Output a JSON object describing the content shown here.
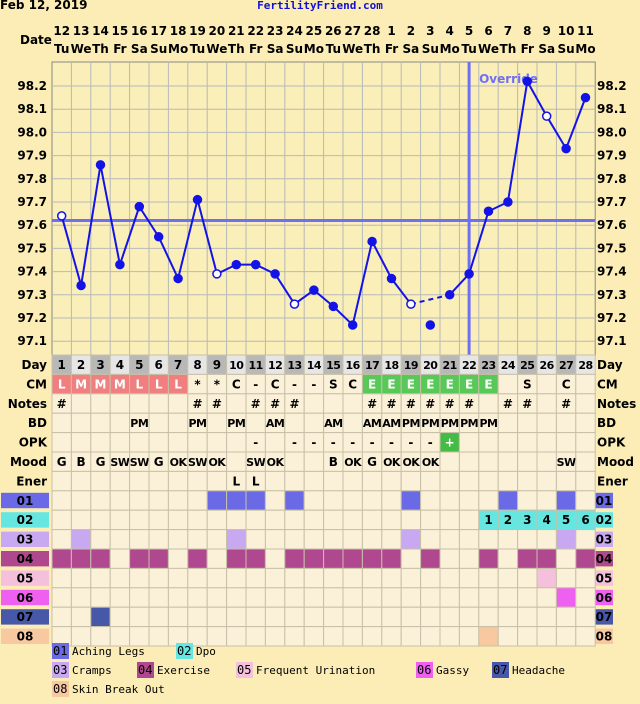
{
  "header": {
    "date": "Feb 12, 2019",
    "site": "FertilityFriend.com"
  },
  "labels": {
    "date_row": "Date",
    "override": "Override"
  },
  "colors": {
    "background": "#fcedb7",
    "plot_bg": "#faefb8",
    "temp_line": "#1313e8",
    "coverline": "#6f6ff2",
    "dpo_cell": "#66e6e0",
    "opk_positive": "#44bb44",
    "cm_fertile": "#58c858",
    "cm_menses": "#f08080",
    "day_cell_a": "#b8b8b8",
    "day_cell_b": "#e6e6e6"
  },
  "chart_data": {
    "type": "line",
    "dates": [
      "12",
      "13",
      "14",
      "15",
      "16",
      "17",
      "18",
      "19",
      "20",
      "21",
      "22",
      "23",
      "24",
      "25",
      "26",
      "27",
      "28",
      "1",
      "2",
      "3",
      "4",
      "5",
      "6",
      "7",
      "8",
      "9",
      "10",
      "11"
    ],
    "weekdays": [
      "Tu",
      "We",
      "Th",
      "Fr",
      "Sa",
      "Su",
      "Mo",
      "Tu",
      "We",
      "Th",
      "Fr",
      "Sa",
      "Su",
      "Mo",
      "Tu",
      "We",
      "Th",
      "Fr",
      "Sa",
      "Su",
      "Mo",
      "Tu",
      "We",
      "Th",
      "Fr",
      "Sa",
      "Su",
      "Mo"
    ],
    "cycle_days": [
      1,
      2,
      3,
      4,
      5,
      6,
      7,
      8,
      9,
      10,
      11,
      12,
      13,
      14,
      15,
      16,
      17,
      18,
      19,
      20,
      21,
      22,
      23,
      24,
      25,
      26,
      27,
      28
    ],
    "temps": [
      97.64,
      97.34,
      97.86,
      97.43,
      97.68,
      97.55,
      97.37,
      97.71,
      97.39,
      97.43,
      97.43,
      97.39,
      97.26,
      97.32,
      97.25,
      97.17,
      97.53,
      97.37,
      97.26,
      97.17,
      97.3,
      97.39,
      97.66,
      97.7,
      98.22,
      98.07,
      97.93,
      98.15
    ],
    "open_markers": [
      1,
      9,
      13,
      19,
      26
    ],
    "dashed_segments": [
      [
        19,
        21
      ]
    ],
    "detached_points": [
      20
    ],
    "coverline": 97.62,
    "override_day": 22,
    "y_ticks": [
      "98.2",
      "98.1",
      "98.0",
      "97.9",
      "97.8",
      "97.7",
      "97.6",
      "97.5",
      "97.4",
      "97.3",
      "97.2",
      "97.1"
    ],
    "ylim": [
      97.0,
      98.25
    ]
  },
  "rows": [
    {
      "label": "Day",
      "kind": "day"
    },
    {
      "label": "CM",
      "cells": [
        "L",
        "M",
        "M",
        "M",
        "L",
        "L",
        "L",
        "*",
        "*",
        "C",
        "-",
        "C",
        "-",
        "-",
        "S",
        "C",
        "E",
        "E",
        "E",
        "E",
        "E",
        "E",
        "E",
        "",
        "S",
        "",
        "C",
        ""
      ],
      "fills": [
        "cm_menses",
        "cm_menses",
        "cm_menses",
        "cm_menses",
        "cm_menses",
        "cm_menses",
        "cm_menses",
        "",
        "",
        "",
        "",
        "",
        "",
        "",
        "",
        "",
        "cm_fertile",
        "cm_fertile",
        "cm_fertile",
        "cm_fertile",
        "cm_fertile",
        "cm_fertile",
        "cm_fertile",
        "",
        "",
        "",
        "",
        ""
      ]
    },
    {
      "label": "Notes",
      "cells": [
        "#",
        "",
        "",
        "",
        "",
        "",
        "",
        "#",
        "#",
        "",
        "#",
        "#",
        "#",
        "",
        "",
        "",
        "#",
        "#",
        "#",
        "#",
        "#",
        "#",
        "",
        "#",
        "#",
        "",
        "#",
        ""
      ]
    },
    {
      "label": "BD",
      "cells": [
        "",
        "",
        "",
        "",
        "PM",
        "",
        "",
        "PM",
        "",
        "PM",
        "",
        "AM",
        "",
        "",
        "AM",
        "",
        "AM",
        "AM",
        "PM",
        "PM",
        "PM",
        "PM",
        "PM",
        "",
        "",
        "",
        "",
        ""
      ]
    },
    {
      "label": "OPK",
      "cells": [
        "",
        "",
        "",
        "",
        "",
        "",
        "",
        "",
        "",
        "",
        "-",
        "",
        "-",
        "-",
        "-",
        "-",
        "-",
        "-",
        "-",
        "-",
        "+",
        "",
        "",
        "",
        "",
        "",
        "",
        ""
      ],
      "fills": [
        "",
        "",
        "",
        "",
        "",
        "",
        "",
        "",
        "",
        "",
        "",
        "",
        "",
        "",
        "",
        "",
        "",
        "",
        "",
        "",
        "opk_positive",
        "",
        "",
        "",
        "",
        "",
        "",
        ""
      ]
    },
    {
      "label": "Mood",
      "cells": [
        "G",
        "B",
        "G",
        "SW",
        "SW",
        "G",
        "OK",
        "SW",
        "OK",
        "",
        "SW",
        "OK",
        "",
        "",
        "B",
        "OK",
        "G",
        "OK",
        "OK",
        "OK",
        "",
        "",
        "",
        "",
        "",
        "",
        "SW",
        ""
      ]
    },
    {
      "label": "Ener",
      "cells": [
        "",
        "",
        "",
        "",
        "",
        "",
        "",
        "",
        "",
        "L",
        "L",
        "",
        "",
        "",
        "",
        "",
        "",
        "",
        "",
        "",
        "",
        "",
        "",
        "",
        "",
        "",
        "",
        ""
      ]
    },
    {
      "label": "01",
      "cells": [
        "",
        "",
        "",
        "",
        "",
        "",
        "",
        "",
        "",
        "",
        "",
        "",
        "",
        "",
        "",
        "",
        "",
        "",
        "",
        "",
        "",
        "",
        "",
        "",
        "",
        "",
        "",
        ""
      ],
      "fills": [
        "",
        "",
        "",
        "",
        "",
        "",
        "",
        "",
        "c01",
        "c01",
        "c01",
        "",
        "c01",
        "",
        "",
        "",
        "",
        "",
        "c01",
        "",
        "",
        "",
        "",
        "c01",
        "",
        "",
        "c01",
        ""
      ]
    },
    {
      "label": "02",
      "cells": [
        "",
        "",
        "",
        "",
        "",
        "",
        "",
        "",
        "",
        "",
        "",
        "",
        "",
        "",
        "",
        "",
        "",
        "",
        "",
        "",
        "",
        "",
        "1",
        "2",
        "3",
        "4",
        "5",
        "6"
      ],
      "fills": [
        "",
        "",
        "",
        "",
        "",
        "",
        "",
        "",
        "",
        "",
        "",
        "",
        "",
        "",
        "",
        "",
        "",
        "",
        "",
        "",
        "",
        "",
        "c02",
        "c02",
        "c02",
        "c02",
        "c02",
        "c02"
      ]
    },
    {
      "label": "03",
      "cells": [
        "",
        "",
        "",
        "",
        "",
        "",
        "",
        "",
        "",
        "",
        "",
        "",
        "",
        "",
        "",
        "",
        "",
        "",
        "",
        "",
        "",
        "",
        "",
        "",
        "",
        "",
        "",
        ""
      ],
      "fills": [
        "",
        "c03",
        "",
        "",
        "",
        "",
        "",
        "",
        "",
        "c03",
        "",
        "",
        "",
        "",
        "",
        "",
        "",
        "",
        "c03",
        "",
        "",
        "",
        "",
        "",
        "",
        "",
        "c03",
        ""
      ]
    },
    {
      "label": "04",
      "cells": [
        "",
        "",
        "",
        "",
        "",
        "",
        "",
        "",
        "",
        "",
        "",
        "",
        "",
        "",
        "",
        "",
        "",
        "",
        "",
        "",
        "",
        "",
        "",
        "",
        "",
        "",
        "",
        ""
      ],
      "fills": [
        "c04",
        "c04",
        "c04",
        "",
        "c04",
        "c04",
        "",
        "c04",
        "",
        "c04",
        "c04",
        "",
        "c04",
        "c04",
        "c04",
        "c04",
        "c04",
        "c04",
        "",
        "c04",
        "",
        "",
        "c04",
        "",
        "c04",
        "c04",
        "",
        "c04"
      ]
    },
    {
      "label": "05",
      "cells": [
        "",
        "",
        "",
        "",
        "",
        "",
        "",
        "",
        "",
        "",
        "",
        "",
        "",
        "",
        "",
        "",
        "",
        "",
        "",
        "",
        "",
        "",
        "",
        "",
        "",
        "",
        "",
        ""
      ],
      "fills": [
        "",
        "",
        "",
        "",
        "",
        "",
        "",
        "",
        "",
        "",
        "",
        "",
        "",
        "",
        "",
        "",
        "",
        "",
        "",
        "",
        "",
        "",
        "",
        "",
        "",
        "c05",
        "",
        ""
      ]
    },
    {
      "label": "06",
      "cells": [
        "",
        "",
        "",
        "",
        "",
        "",
        "",
        "",
        "",
        "",
        "",
        "",
        "",
        "",
        "",
        "",
        "",
        "",
        "",
        "",
        "",
        "",
        "",
        "",
        "",
        "",
        "",
        ""
      ],
      "fills": [
        "",
        "",
        "",
        "",
        "",
        "",
        "",
        "",
        "",
        "",
        "",
        "",
        "",
        "",
        "",
        "",
        "",
        "",
        "",
        "",
        "",
        "",
        "",
        "",
        "",
        "",
        "c06",
        ""
      ]
    },
    {
      "label": "07",
      "cells": [
        "",
        "",
        "",
        "",
        "",
        "",
        "",
        "",
        "",
        "",
        "",
        "",
        "",
        "",
        "",
        "",
        "",
        "",
        "",
        "",
        "",
        "",
        "",
        "",
        "",
        "",
        "",
        ""
      ],
      "fills": [
        "",
        "",
        "c07",
        "",
        "",
        "",
        "",
        "",
        "",
        "",
        "",
        "",
        "",
        "",
        "",
        "",
        "",
        "",
        "",
        "",
        "",
        "",
        "",
        "",
        "",
        "",
        "",
        ""
      ]
    },
    {
      "label": "08",
      "cells": [
        "",
        "",
        "",
        "",
        "",
        "",
        "",
        "",
        "",
        "",
        "",
        "",
        "",
        "",
        "",
        "",
        "",
        "",
        "",
        "",
        "",
        "",
        "",
        "",
        "",
        "",
        "",
        ""
      ],
      "fills": [
        "",
        "",
        "",
        "",
        "",
        "",
        "",
        "",
        "",
        "",
        "",
        "",
        "",
        "",
        "",
        "",
        "",
        "",
        "",
        "",
        "",
        "",
        "c08",
        "",
        "",
        "",
        "",
        ""
      ]
    }
  ],
  "legend_colors": {
    "c01": "#6a6ae6",
    "c02": "#66e6e0",
    "c03": "#c8a8f0",
    "c04": "#b0488f",
    "c05": "#f4c0dc",
    "c06": "#f060f0",
    "c07": "#4858a8",
    "c08": "#f8c8a0"
  },
  "legend": [
    {
      "code": "01",
      "label": "Aching Legs",
      "color": "#6a6ae6"
    },
    {
      "code": "02",
      "label": "Dpo",
      "color": "#66e6e0"
    },
    {
      "code": "03",
      "label": "Cramps",
      "color": "#c8a8f0"
    },
    {
      "code": "04",
      "label": "Exercise",
      "color": "#b0488f"
    },
    {
      "code": "05",
      "label": "Frequent Urination",
      "color": "#f4c0dc"
    },
    {
      "code": "06",
      "label": "Gassy",
      "color": "#f060f0"
    },
    {
      "code": "07",
      "label": "Headache",
      "color": "#4858a8"
    },
    {
      "code": "08",
      "label": "Skin Break Out",
      "color": "#f8c8a0"
    }
  ]
}
